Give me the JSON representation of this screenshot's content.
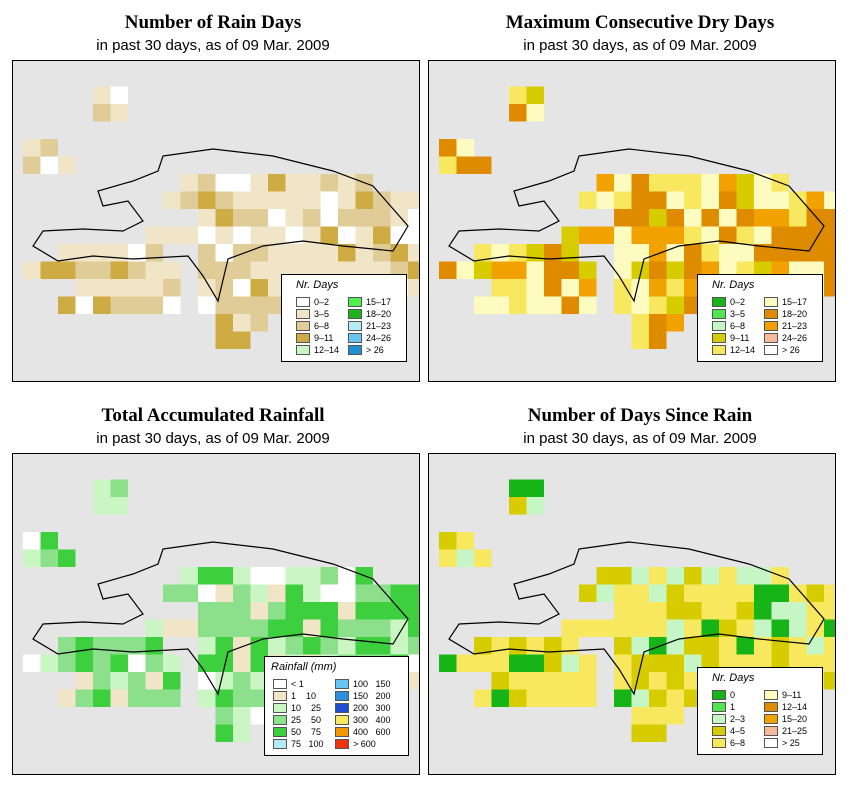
{
  "panels": [
    {
      "title": "Number of Rain Days",
      "subtitle": "in past 30 days, as of  09 Mar. 2009",
      "legend": {
        "title": "Nr. Days",
        "items": [
          {
            "label": "0–2",
            "color": "#ffffff"
          },
          {
            "label": "3–5",
            "color": "#f1e5c8"
          },
          {
            "label": "6–8",
            "color": "#e0cc97"
          },
          {
            "label": "9–11",
            "color": "#cfac43"
          },
          {
            "label": "12–14",
            "color": "#c9f7c4"
          },
          {
            "label": "15–17",
            "color": "#4ef04e"
          },
          {
            "label": "18–20",
            "color": "#20b020"
          },
          {
            "label": "21–23",
            "color": "#b4ecf6"
          },
          {
            "label": "24–26",
            "color": "#67c5ef"
          },
          {
            "label": "> 26",
            "color": "#2090d0"
          }
        ]
      }
    },
    {
      "title": "Maximum Consecutive Dry Days",
      "subtitle": "in past 30 days, as of  09 Mar. 2009",
      "legend": {
        "title": "Nr. Days",
        "items": [
          {
            "label": "0–2",
            "color": "#16b416"
          },
          {
            "label": "3–5",
            "color": "#52e552"
          },
          {
            "label": "6–8",
            "color": "#c6f6c6"
          },
          {
            "label": "9–11",
            "color": "#d6cc00"
          },
          {
            "label": "12–14",
            "color": "#f8e860"
          },
          {
            "label": "15–17",
            "color": "#fdfbc0"
          },
          {
            "label": "18–20",
            "color": "#de8b00"
          },
          {
            "label": "21–23",
            "color": "#f2a200"
          },
          {
            "label": "24–26",
            "color": "#f8b89a"
          },
          {
            "label": "> 26",
            "color": "#ffffff"
          }
        ]
      }
    },
    {
      "title": "Total Accumulated Rainfall",
      "subtitle": "in past 30 days, as of  09 Mar. 2009",
      "legend": {
        "title": "Rainfall (mm)",
        "items": [
          {
            "label": "< 1",
            "color": "#ffffff"
          },
          {
            "label": "1    10",
            "color": "#f1e5c8"
          },
          {
            "label": "10    25",
            "color": "#c9f6c2"
          },
          {
            "label": "25    50",
            "color": "#8ce08c"
          },
          {
            "label": "50    75",
            "color": "#3ecf3e"
          },
          {
            "label": "75   100",
            "color": "#b4ecf6"
          },
          {
            "label": "100   150",
            "color": "#67c5ef"
          },
          {
            "label": "150   200",
            "color": "#2b8fde"
          },
          {
            "label": "200   300",
            "color": "#1f4fd0"
          },
          {
            "label": "300   400",
            "color": "#f8e860"
          },
          {
            "label": "400   600",
            "color": "#f39800"
          },
          {
            "label": "> 600",
            "color": "#ee3311"
          }
        ]
      }
    },
    {
      "title": "Number of Days Since Rain",
      "subtitle": "in past 30 days, as of  09 Mar. 2009",
      "legend": {
        "title": "Nr. Days",
        "items": [
          {
            "label": "0",
            "color": "#16b416"
          },
          {
            "label": "1",
            "color": "#52e552"
          },
          {
            "label": "2–3",
            "color": "#c6f6c6"
          },
          {
            "label": "4–5",
            "color": "#d6cc00"
          },
          {
            "label": "6–8",
            "color": "#f8e860"
          },
          {
            "label": "9–11",
            "color": "#fdfbc0"
          },
          {
            "label": "12–14",
            "color": "#de8b00"
          },
          {
            "label": "15–20",
            "color": "#f2a200"
          },
          {
            "label": "21–25",
            "color": "#f8b89a"
          },
          {
            "label": "> 25",
            "color": "#ffffff"
          }
        ]
      }
    }
  ]
}
